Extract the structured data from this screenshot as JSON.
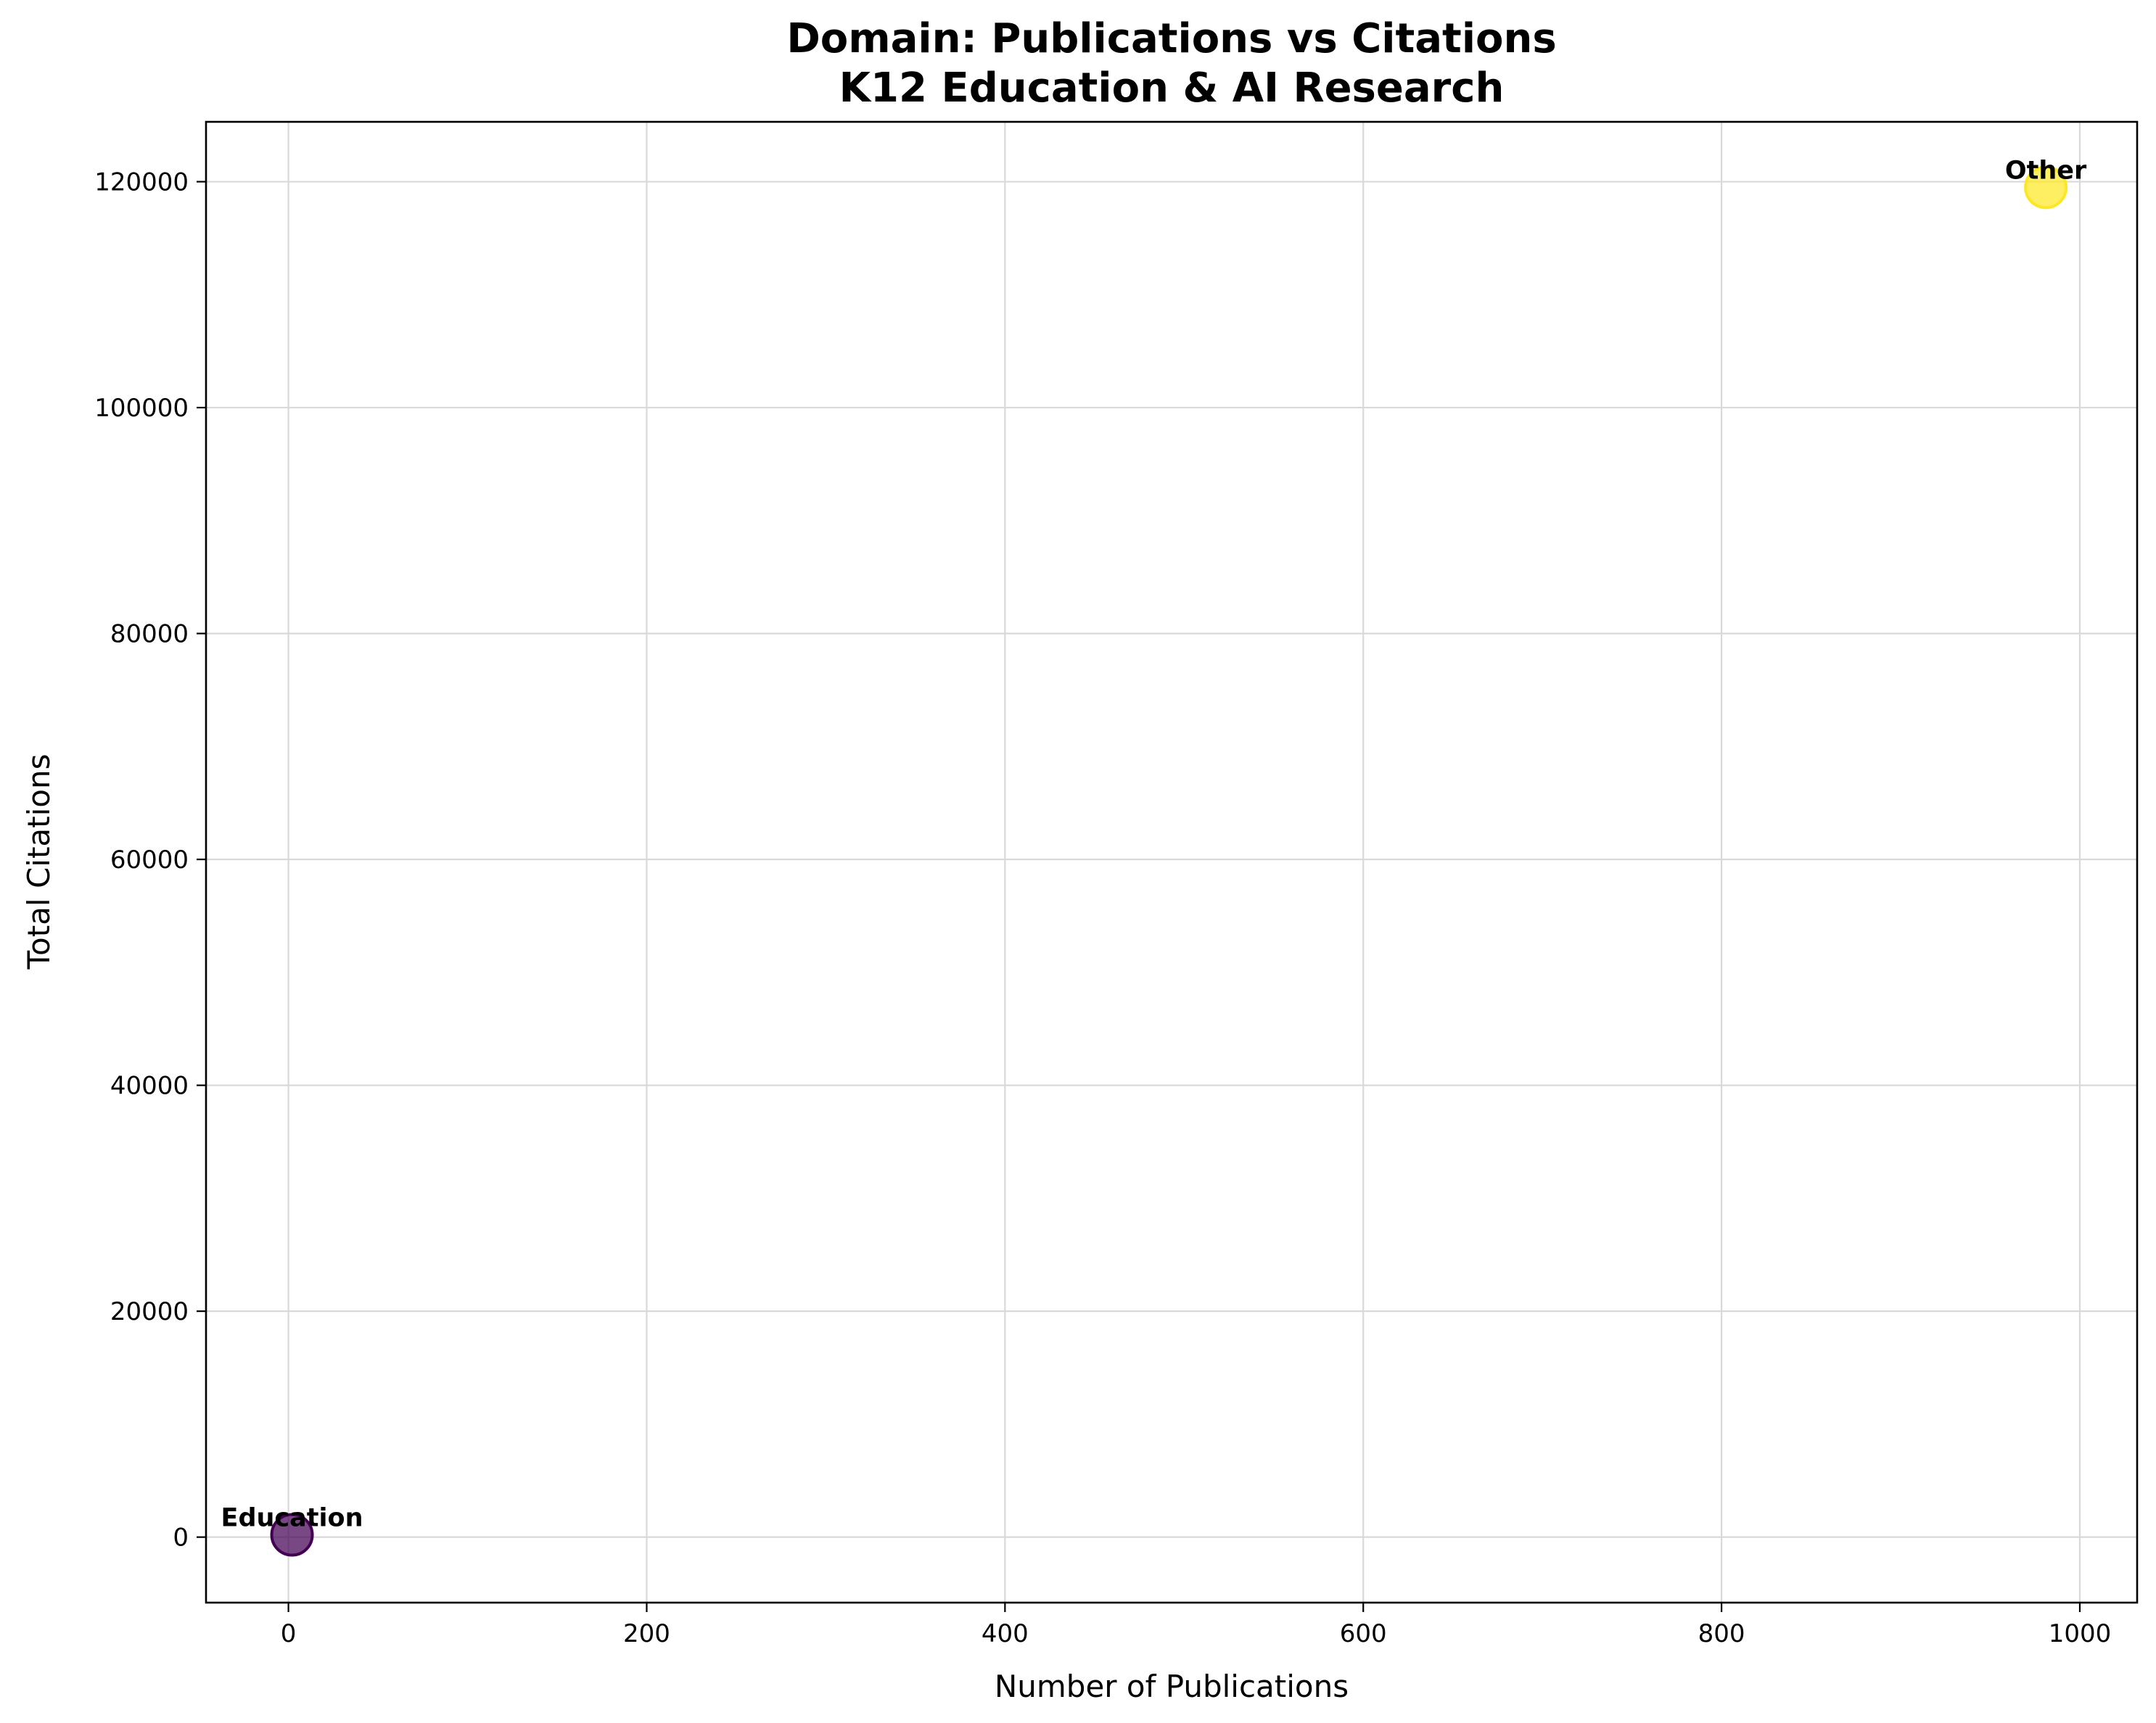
{
  "chart_data": {
    "type": "scatter",
    "title": "Domain: Publications vs Citations",
    "subtitle": "K12 Education & AI Research",
    "xlabel": "Number of Publications",
    "ylabel": "Total Citations",
    "xlim": [
      -46,
      1032
    ],
    "ylim": [
      -5800,
      125300
    ],
    "xticks": [
      0,
      200,
      400,
      600,
      800,
      1000
    ],
    "yticks": [
      0,
      20000,
      40000,
      60000,
      80000,
      100000,
      120000
    ],
    "grid": true,
    "points": [
      {
        "label": "Education",
        "x": 2,
        "y": 200,
        "color": "#440154"
      },
      {
        "label": "Other",
        "x": 981,
        "y": 119500,
        "color": "#fde725"
      }
    ]
  }
}
